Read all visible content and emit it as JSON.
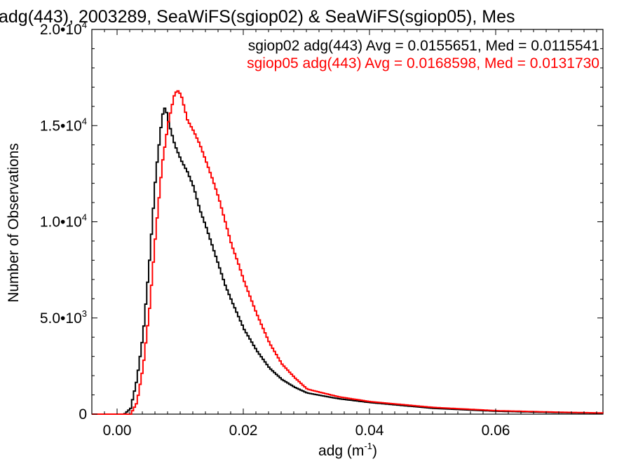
{
  "chart_data": {
    "type": "line",
    "title": "adg(443), 2003289, SeaWiFS(sgiop02) & SeaWiFS(sgiop05), Mes",
    "xlabel": "adg (m",
    "xlabel_sup": "-1",
    "xlabel_suffix": ")",
    "ylabel": "Number of Observations",
    "xlim": [
      -0.004,
      0.077
    ],
    "ylim": [
      0,
      20000
    ],
    "x_ticks": [
      0.0,
      0.02,
      0.04,
      0.06
    ],
    "x_tick_labels": [
      "0.00",
      "0.02",
      "0.04",
      "0.06"
    ],
    "y_ticks": [
      0,
      5000,
      10000,
      15000,
      20000
    ],
    "y_tick_labels": [
      {
        "mantissa": "0",
        "exp": ""
      },
      {
        "mantissa": "5.0•10",
        "exp": "3"
      },
      {
        "mantissa": "1.0•10",
        "exp": "4"
      },
      {
        "mantissa": "1.5•10",
        "exp": "4"
      },
      {
        "mantissa": "2.0•10",
        "exp": "4"
      }
    ],
    "grid": false,
    "legend_position": "top-right",
    "series": [
      {
        "name": "sgiop02 adg(443) Avg = 0.0155651, Med = 0.0115541",
        "color": "#000000",
        "x": [
          -0.004,
          0.0,
          0.001,
          0.002,
          0.003,
          0.004,
          0.005,
          0.006,
          0.007,
          0.0075,
          0.008,
          0.009,
          0.01,
          0.011,
          0.012,
          0.013,
          0.014,
          0.015,
          0.016,
          0.017,
          0.018,
          0.02,
          0.022,
          0.024,
          0.026,
          0.028,
          0.03,
          0.035,
          0.04,
          0.045,
          0.05,
          0.06,
          0.07,
          0.077
        ],
        "values": [
          0,
          0,
          0,
          300,
          1800,
          4200,
          8000,
          12500,
          15500,
          16000,
          15200,
          14000,
          13200,
          12600,
          11800,
          10600,
          9700,
          8700,
          7700,
          6700,
          5900,
          4400,
          3300,
          2400,
          1800,
          1400,
          1100,
          800,
          600,
          450,
          300,
          150,
          80,
          50
        ]
      },
      {
        "name": "sgiop05 adg(443) Avg = 0.0168598, Med = 0.0131730",
        "color": "#ff0000",
        "x": [
          -0.004,
          0.0,
          0.002,
          0.003,
          0.004,
          0.005,
          0.006,
          0.007,
          0.008,
          0.009,
          0.0095,
          0.01,
          0.011,
          0.012,
          0.013,
          0.014,
          0.015,
          0.016,
          0.017,
          0.018,
          0.019,
          0.02,
          0.022,
          0.024,
          0.026,
          0.028,
          0.03,
          0.035,
          0.04,
          0.045,
          0.05,
          0.06,
          0.07,
          0.077
        ],
        "values": [
          0,
          0,
          0,
          600,
          2500,
          5500,
          9500,
          13000,
          15200,
          16700,
          16800,
          16600,
          15300,
          14700,
          14000,
          13100,
          12200,
          11200,
          10000,
          8800,
          7900,
          6900,
          5200,
          3700,
          2600,
          1900,
          1300,
          900,
          650,
          500,
          350,
          180,
          100,
          60
        ]
      }
    ]
  }
}
